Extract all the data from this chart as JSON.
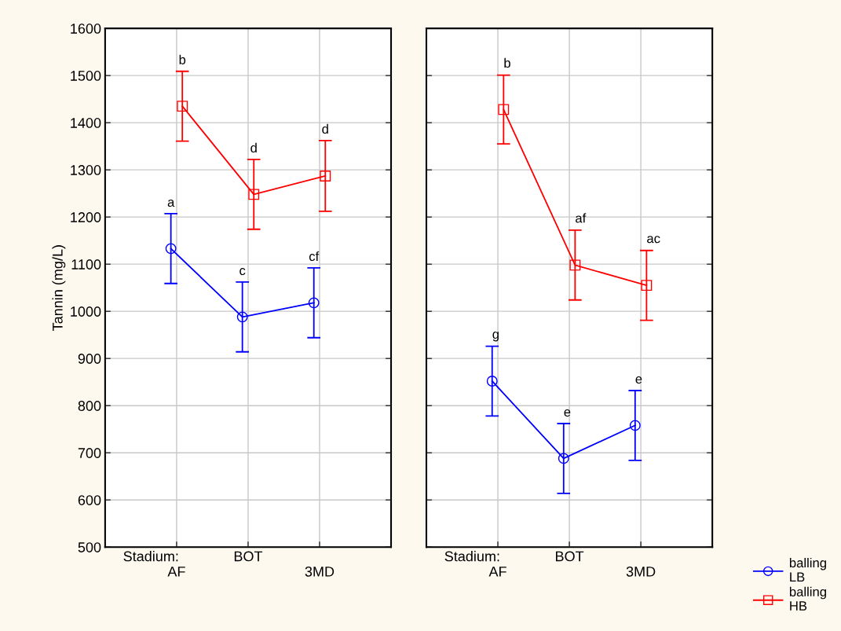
{
  "chart_data": [
    {
      "type": "line",
      "xlabel": "Stadium:",
      "ylabel": "Tannin (mg/L)",
      "categories": [
        "AF",
        "BOT",
        "3MD"
      ],
      "ylim": [
        500,
        1600
      ],
      "yticks": [
        500,
        600,
        700,
        800,
        900,
        1000,
        1100,
        1200,
        1300,
        1400,
        1500,
        1600
      ],
      "grid": true,
      "legend": "bottom right",
      "series": [
        {
          "name": "balling LB",
          "color": "#0000ff",
          "marker": "circle",
          "values": [
            1133,
            988,
            1018
          ],
          "errors": [
            74,
            74,
            74
          ]
        },
        {
          "name": "balling HB",
          "color": "#ff0000",
          "marker": "square",
          "values": [
            1435,
            1248,
            1287
          ],
          "errors": [
            74,
            74,
            75
          ]
        }
      ],
      "annotations": [
        {
          "text": "a",
          "x": "AF",
          "y": 1207
        },
        {
          "text": "c",
          "x": "BOT",
          "y": 1062
        },
        {
          "text": "cf",
          "x": "3MD",
          "y": 1092
        },
        {
          "text": "b",
          "x": "AF",
          "y": 1509
        },
        {
          "text": "d",
          "x": "BOT",
          "y": 1322
        },
        {
          "text": "d",
          "x": "3MD",
          "y": 1362
        }
      ]
    },
    {
      "type": "line",
      "xlabel": "Stadium:",
      "categories": [
        "AF",
        "BOT",
        "3MD"
      ],
      "ylim": [
        500,
        1600
      ],
      "yticks": [
        500,
        600,
        700,
        800,
        900,
        1000,
        1100,
        1200,
        1300,
        1400,
        1500,
        1600
      ],
      "grid": true,
      "tick_labels": "x",
      "series": [
        {
          "color": "#0000ff",
          "marker": "circle",
          "values": [
            852,
            688,
            758
          ],
          "errors": [
            74,
            74,
            74
          ]
        },
        {
          "color": "#ff0000",
          "marker": "square",
          "values": [
            1428,
            1098,
            1055
          ],
          "errors": [
            73,
            74,
            74
          ]
        }
      ],
      "annotations": [
        {
          "text": "g",
          "x": "AF",
          "y": 927
        },
        {
          "text": "e",
          "x": "BOT",
          "y": 762
        },
        {
          "text": "e",
          "x": "3MD",
          "y": 832
        },
        {
          "text": "b",
          "x": "AF",
          "y": 1502
        },
        {
          "text": "af",
          "x": "BOT",
          "y": 1173
        },
        {
          "text": "ac",
          "x": "3MD",
          "y": 1130
        }
      ]
    }
  ]
}
